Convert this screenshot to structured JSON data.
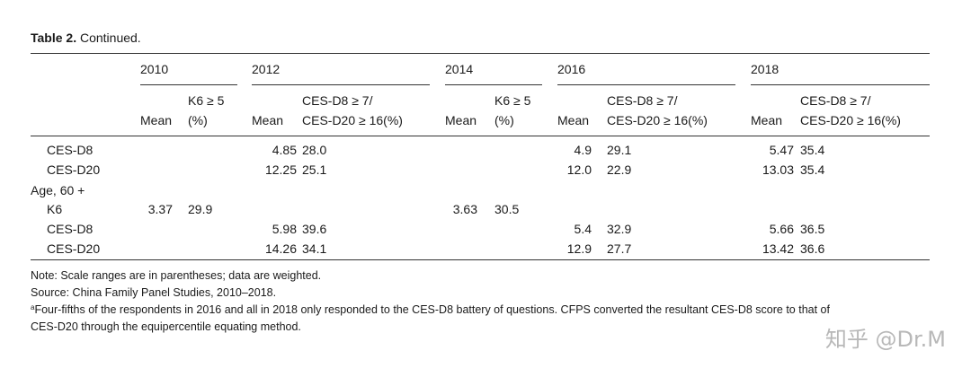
{
  "caption": {
    "label": "Table 2.",
    "text": "Continued."
  },
  "years": [
    "2010",
    "2012",
    "2014",
    "2016",
    "2018"
  ],
  "col_headers": {
    "mean": "Mean",
    "k6_line1": "K6 ≥ 5",
    "k6_line2": "(%)",
    "ces_line1": "CES-D8 ≥ 7/",
    "ces_line2": "CES-D20 ≥ 16(%)"
  },
  "rows": [
    {
      "label": "CES-D8",
      "cells": [
        "",
        "",
        "4.85",
        "28.0",
        "",
        "",
        "4.9",
        "29.1",
        "5.47",
        "35.4"
      ]
    },
    {
      "label": "CES-D20",
      "cells": [
        "",
        "",
        "12.25",
        "25.1",
        "",
        "",
        "12.0",
        "22.9",
        "13.03",
        "35.4"
      ]
    },
    {
      "label": "Age, 60 +",
      "cells": [
        "",
        "",
        "",
        "",
        "",
        "",
        "",
        "",
        "",
        ""
      ]
    },
    {
      "label": "K6",
      "cells": [
        "3.37",
        "29.9",
        "",
        "",
        "3.63",
        "30.5",
        "",
        "",
        "",
        ""
      ]
    },
    {
      "label": "CES-D8",
      "cells": [
        "",
        "",
        "5.98",
        "39.6",
        "",
        "",
        "5.4",
        "32.9",
        "5.66",
        "36.5"
      ]
    },
    {
      "label": "CES-D20",
      "cells": [
        "",
        "",
        "14.26",
        "34.1",
        "",
        "",
        "12.9",
        "27.7",
        "13.42",
        "36.6"
      ]
    }
  ],
  "notes": {
    "note1": "Note: Scale ranges are in parentheses; data are weighted.",
    "note2": "Source: China Family Panel Studies, 2010–2018.",
    "footnote_mark": "a",
    "footnote_line1": "Four-fifths of the respondents in 2016 and all in 2018 only responded to the CES-D8 battery of questions. CFPS converted the resultant CES-D8 score to that of",
    "footnote_line2": "CES-D20 through the equipercentile equating method."
  },
  "watermark": "知乎 @Dr.M"
}
